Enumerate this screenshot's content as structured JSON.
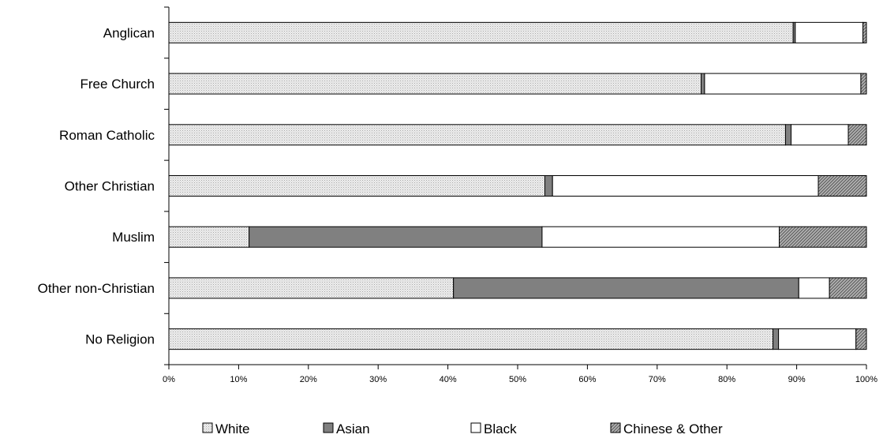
{
  "chart_data": {
    "type": "bar",
    "orientation": "horizontal",
    "stacked": true,
    "normalized_percent": true,
    "categories": [
      "Anglican",
      "Free Church",
      "Roman Catholic",
      "Other Christian",
      "Muslim",
      "Other non-Christian",
      "No Religion"
    ],
    "series": [
      {
        "name": "White",
        "values": [
          89.5,
          76.3,
          88.4,
          53.9,
          11.5,
          40.8,
          86.6
        ],
        "color": "#e0e0e0",
        "pattern": "dotted"
      },
      {
        "name": "Asian",
        "values": [
          0.3,
          0.5,
          0.8,
          1.1,
          42.0,
          49.5,
          0.8
        ],
        "color": "#808080",
        "pattern": "solid"
      },
      {
        "name": "Black",
        "values": [
          9.7,
          22.4,
          8.2,
          38.1,
          34.0,
          4.4,
          11.1
        ],
        "color": "#ffffff",
        "pattern": "solid"
      },
      {
        "name": "Chinese & Other",
        "values": [
          0.5,
          0.8,
          2.6,
          6.9,
          12.5,
          5.3,
          1.5
        ],
        "color": "#999999",
        "pattern": "hatched"
      }
    ],
    "xlim": [
      0,
      100
    ],
    "x_ticks": [
      "0%",
      "10%",
      "20%",
      "30%",
      "40%",
      "50%",
      "60%",
      "70%",
      "80%",
      "90%",
      "100%"
    ],
    "title": "",
    "xlabel": "",
    "ylabel": "",
    "grid": false,
    "legend_position": "bottom"
  }
}
